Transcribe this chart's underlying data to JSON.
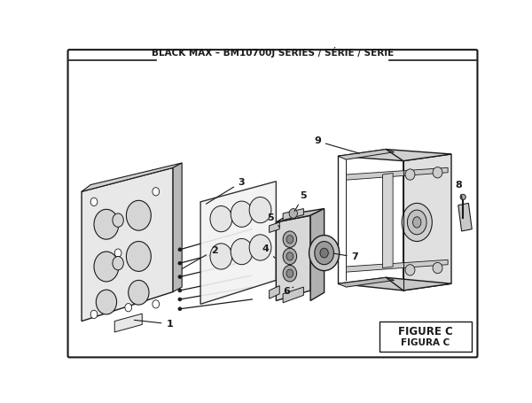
{
  "title": "BLACK MAX – BM10700J SERIES / SÉRIE / SERIE",
  "figure_label": "FIGURE C",
  "figura_label": "FIGURA C",
  "bg_color": "#ffffff",
  "line_color": "#1a1a1a",
  "gray_light": "#e8e8e8",
  "gray_mid": "#cccccc",
  "gray_dark": "#aaaaaa",
  "title_fontsize": 7.5,
  "fig_label_fontsize": 8.5
}
